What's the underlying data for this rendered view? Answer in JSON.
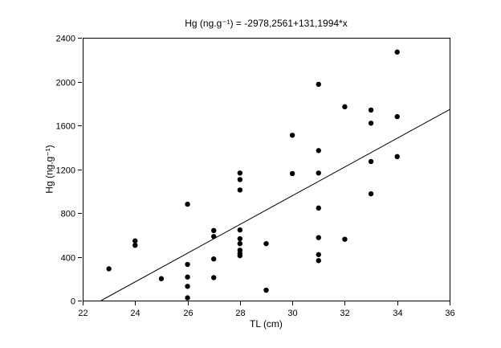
{
  "chart_data": {
    "type": "scatter",
    "title": "Hg (ng.g⁻¹) = -2978,2561+131,1994*x",
    "xlabel": "TL (cm)",
    "ylabel": "Hg (ng.g⁻¹)",
    "xlim": [
      22,
      36
    ],
    "ylim": [
      0,
      2400
    ],
    "xticks": [
      22,
      24,
      26,
      28,
      30,
      32,
      34,
      36
    ],
    "yticks": [
      0,
      400,
      800,
      1200,
      1600,
      2000,
      2400
    ],
    "grid": false,
    "legend": "none",
    "marker_color": "#000000",
    "line_color": "#000000",
    "regression": {
      "intercept": -2978.2561,
      "slope": 131.1994
    },
    "points": [
      [
        23,
        290
      ],
      [
        24,
        545
      ],
      [
        24,
        505
      ],
      [
        25,
        200
      ],
      [
        26,
        880
      ],
      [
        26,
        330
      ],
      [
        26,
        215
      ],
      [
        26,
        130
      ],
      [
        26,
        25
      ],
      [
        27,
        640
      ],
      [
        27,
        585
      ],
      [
        27,
        380
      ],
      [
        27,
        210
      ],
      [
        28,
        1165
      ],
      [
        28,
        1105
      ],
      [
        28,
        1010
      ],
      [
        28,
        645
      ],
      [
        28,
        565
      ],
      [
        28,
        520
      ],
      [
        28,
        460
      ],
      [
        28,
        430
      ],
      [
        28,
        410
      ],
      [
        29,
        520
      ],
      [
        29,
        95
      ],
      [
        30,
        1510
      ],
      [
        30,
        1160
      ],
      [
        31,
        1975
      ],
      [
        31,
        1370
      ],
      [
        31,
        1165
      ],
      [
        31,
        845
      ],
      [
        31,
        575
      ],
      [
        31,
        420
      ],
      [
        31,
        365
      ],
      [
        32,
        1770
      ],
      [
        32,
        560
      ],
      [
        33,
        1740
      ],
      [
        33,
        1620
      ],
      [
        33,
        1270
      ],
      [
        33,
        975
      ],
      [
        34,
        2270
      ],
      [
        34,
        1680
      ],
      [
        34,
        1315
      ]
    ]
  }
}
